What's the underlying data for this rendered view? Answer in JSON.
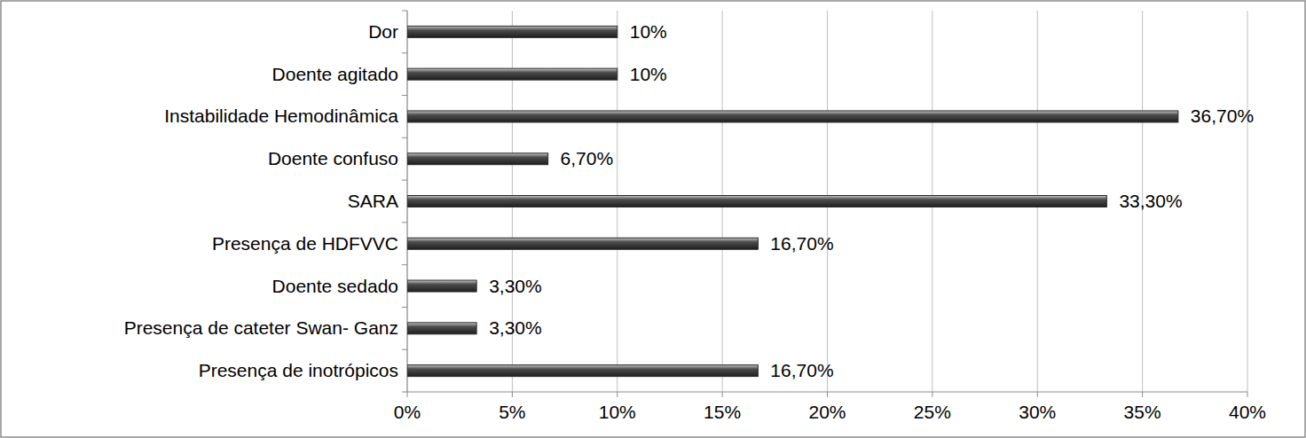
{
  "chart_data": {
    "type": "bar",
    "orientation": "horizontal",
    "categories": [
      "Dor",
      "Doente agitado",
      "Instabilidade Hemodinâmica",
      "Doente confuso",
      "SARA",
      "Presença de HDFVVC",
      "Doente sedado",
      "Presença de cateter Swan- Ganz",
      "Presença de inotrópicos"
    ],
    "values": [
      10,
      10,
      36.7,
      6.7,
      33.3,
      16.7,
      3.3,
      3.3,
      16.7
    ],
    "value_labels": [
      "10%",
      "10%",
      "36,70%",
      "6,70%",
      "33,30%",
      "16,70%",
      "3,30%",
      "3,30%",
      "16,70%"
    ],
    "color": "#4d4d4d",
    "xlim": [
      0,
      40
    ],
    "xticks": [
      {
        "value": 0,
        "label": "0%"
      },
      {
        "value": 5,
        "label": "5%"
      },
      {
        "value": 10,
        "label": "10%"
      },
      {
        "value": 15,
        "label": "15%"
      },
      {
        "value": 20,
        "label": "20%"
      },
      {
        "value": 25,
        "label": "25%"
      },
      {
        "value": 30,
        "label": "30%"
      },
      {
        "value": 35,
        "label": "35%"
      },
      {
        "value": 40,
        "label": "40%"
      }
    ],
    "grid": true,
    "data_labels": true
  }
}
